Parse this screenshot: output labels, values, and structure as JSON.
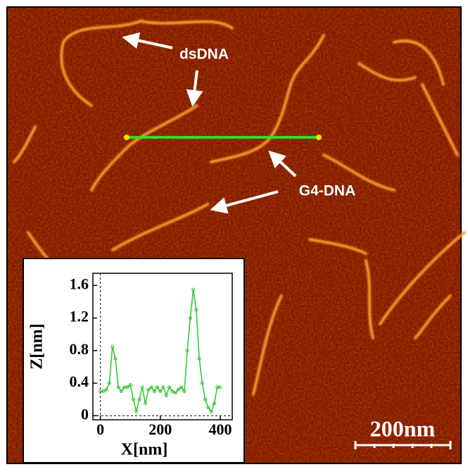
{
  "annotations": {
    "ds_label": "dsDNA",
    "g4_label": "G4-DNA",
    "scale_bar": "200nm"
  },
  "chart_data": {
    "type": "line",
    "x_label": "X[nm]",
    "y_label": "Z[nm]",
    "color": "#2ec42e",
    "x": [
      0,
      10,
      20,
      30,
      40,
      50,
      60,
      70,
      80,
      90,
      100,
      110,
      120,
      130,
      140,
      150,
      160,
      170,
      180,
      190,
      200,
      210,
      220,
      230,
      240,
      250,
      260,
      270,
      280,
      290,
      300,
      310,
      320,
      330,
      340,
      350,
      360,
      370,
      380,
      390,
      400
    ],
    "values": [
      0.3,
      0.3,
      0.32,
      0.4,
      0.85,
      0.7,
      0.35,
      0.3,
      0.35,
      0.35,
      0.38,
      0.2,
      0.05,
      0.2,
      0.35,
      0.15,
      0.32,
      0.35,
      0.3,
      0.35,
      0.3,
      0.35,
      0.25,
      0.35,
      0.3,
      0.28,
      0.32,
      0.35,
      0.3,
      0.8,
      1.2,
      1.55,
      1.3,
      0.7,
      0.4,
      0.2,
      0.1,
      0.05,
      0.15,
      0.35,
      0.35
    ],
    "xlim": [
      -25,
      440
    ],
    "ylim": [
      -0.05,
      1.75
    ],
    "xticks": [
      0,
      200,
      400
    ],
    "yticks": [
      0,
      0.4,
      0.8,
      1.2,
      1.6
    ]
  }
}
